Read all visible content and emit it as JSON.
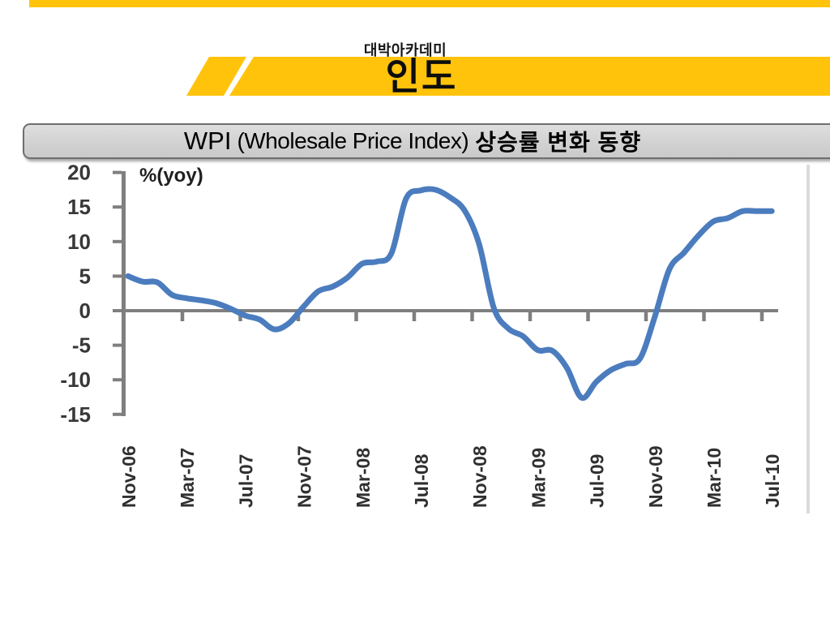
{
  "accent_color": "#FFC30B",
  "header": {
    "academy_label": "대박아카데미",
    "banner_title": "인도"
  },
  "title_bar": {
    "text_main": "WPI",
    "text_paren": "(Wholesale Price Index)",
    "text_korean": "상승률 변화 동향"
  },
  "chart_data": {
    "type": "line",
    "unit_label": "%(yoy)",
    "y_ticks": [
      20,
      15,
      10,
      5,
      0,
      -5,
      -10,
      -15
    ],
    "ylim": [
      -15,
      20
    ],
    "x_tick_labels": [
      "Nov-06",
      "Mar-07",
      "Jul-07",
      "Nov-07",
      "Mar-08",
      "Jul-08",
      "Nov-08",
      "Mar-09",
      "Jul-09",
      "Nov-09",
      "Mar-10",
      "Jul-10"
    ],
    "x_start": "Nov-06",
    "x_freq": "monthly",
    "grid": false,
    "legend": "none",
    "line_color": "#4B7CBE",
    "axis_color": "#7F7F7F",
    "series": [
      {
        "name": "WPI %yoy",
        "values": [
          5.0,
          4.2,
          4.1,
          2.3,
          1.8,
          1.5,
          1.1,
          0.3,
          -0.7,
          -1.3,
          -2.7,
          -1.8,
          0.6,
          2.8,
          3.5,
          4.8,
          6.8,
          7.1,
          8.3,
          16.2,
          17.4,
          17.5,
          16.4,
          14.5,
          9.6,
          0.4,
          -2.6,
          -3.7,
          -5.7,
          -5.8,
          -8.3,
          -12.6,
          -10.3,
          -8.6,
          -7.7,
          -6.9,
          -0.9,
          6.0,
          8.4,
          10.9,
          12.9,
          13.4,
          14.4,
          14.4,
          14.4
        ]
      }
    ]
  }
}
